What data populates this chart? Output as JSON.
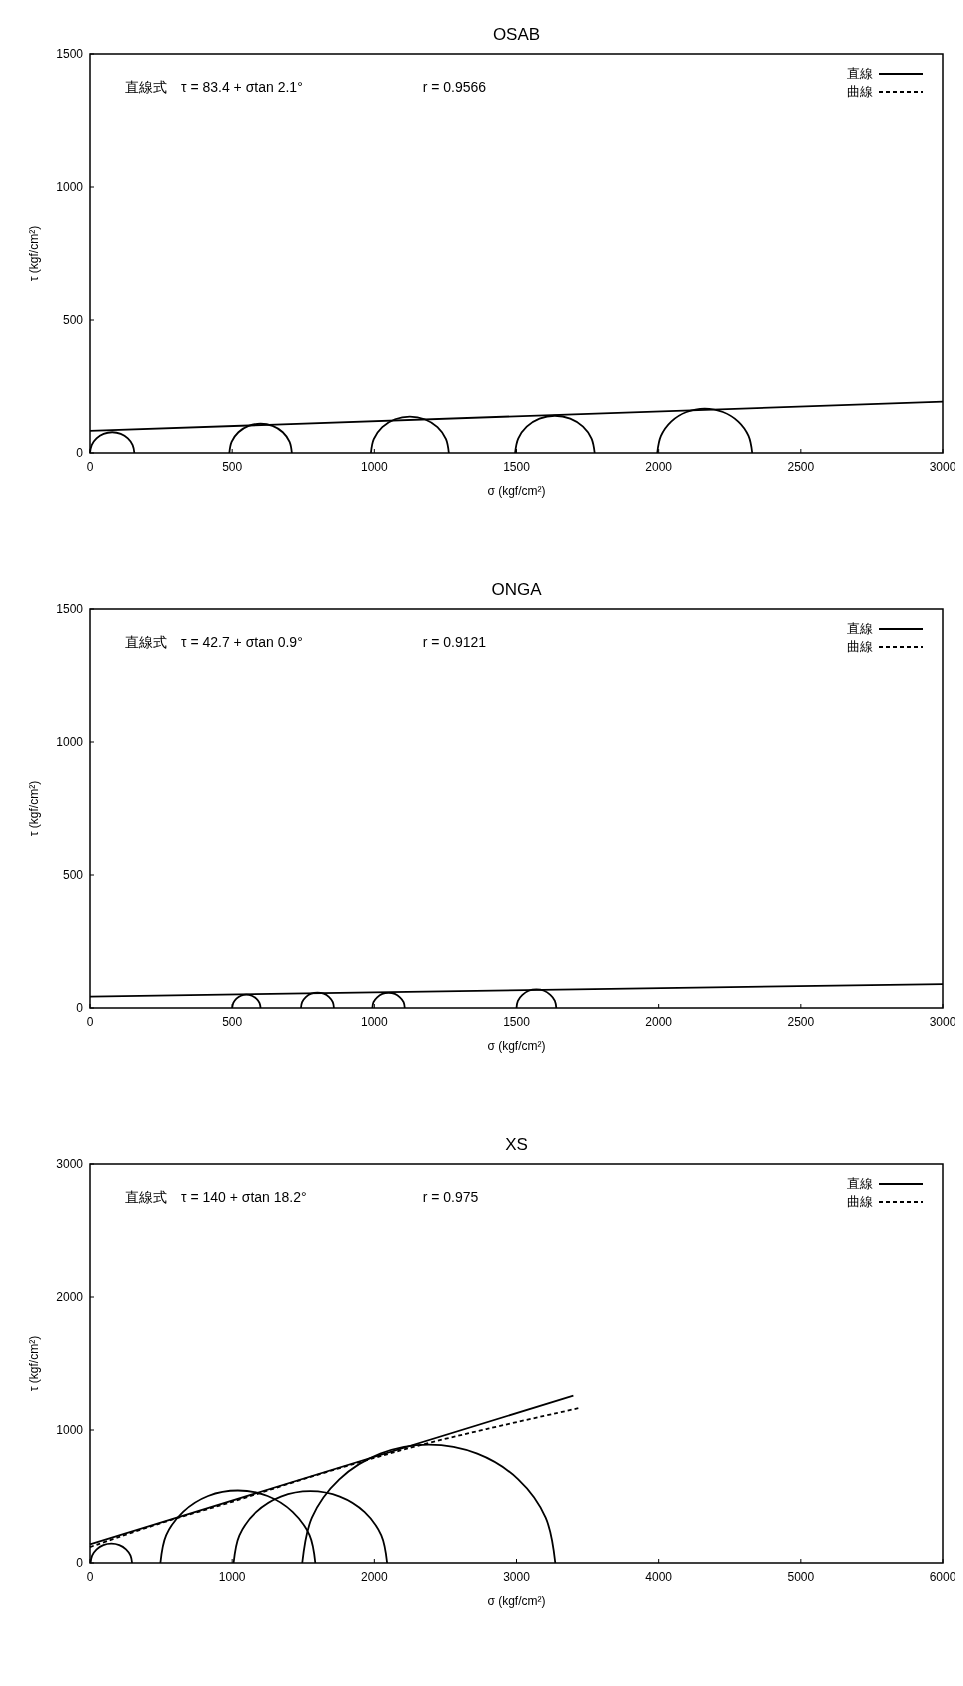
{
  "chart_data": [
    {
      "type": "line",
      "title": "OSAB",
      "xlabel": "σ (kgf/cm²)",
      "ylabel": "τ (kgf/cm²)",
      "xlim": [
        0,
        3000
      ],
      "xticks": [
        0,
        500,
        1000,
        1500,
        2000,
        2500,
        3000
      ],
      "ylim": [
        0,
        1500
      ],
      "yticks": [
        0,
        500,
        1000,
        1500
      ],
      "legend": "top right",
      "annotations": [
        "直線式　τ = 83.4 + σtan 2.1°",
        "r = 0.9566"
      ],
      "series": [
        {
          "name": "直線",
          "color": "#000000",
          "line_style": "solid",
          "x": [
            0,
            3000
          ],
          "values": [
            83,
            193
          ]
        },
        {
          "name": "曲線",
          "color": "#000000",
          "line_style": "dashed"
        },
        {
          "color": "#000000",
          "x": [
            0,
            6,
            23,
            48,
            78,
            108,
            133,
            150,
            156
          ],
          "values": [
            0,
            30,
            55,
            72,
            78,
            72,
            55,
            30,
            0
          ]
        },
        {
          "color": "#000000",
          "x": [
            490,
            498,
            522,
            558,
            600,
            642,
            678,
            702,
            710
          ],
          "values": [
            0,
            42,
            78,
            102,
            110,
            102,
            78,
            42,
            0
          ]
        },
        {
          "color": "#000000",
          "x": [
            988,
            998,
            1028,
            1073,
            1125,
            1177,
            1222,
            1252,
            1262
          ],
          "values": [
            0,
            52,
            97,
            127,
            137,
            127,
            97,
            52,
            0
          ]
        },
        {
          "color": "#000000",
          "x": [
            1495,
            1506,
            1536,
            1581,
            1635,
            1689,
            1734,
            1764,
            1775
          ],
          "values": [
            0,
            54,
            99,
            129,
            140,
            129,
            99,
            54,
            0
          ]
        },
        {
          "color": "#000000",
          "x": [
            1995,
            2008,
            2044,
            2098,
            2162,
            2226,
            2280,
            2316,
            2329
          ],
          "values": [
            0,
            64,
            118,
            154,
            167,
            154,
            118,
            64,
            0
          ]
        }
      ]
    },
    {
      "type": "line",
      "title": "ONGA",
      "xlabel": "σ (kgf/cm²)",
      "ylabel": "τ (kgf/cm²)",
      "xlim": [
        0,
        3000
      ],
      "xticks": [
        0,
        500,
        1000,
        1500,
        2000,
        2500,
        3000
      ],
      "ylim": [
        0,
        1500
      ],
      "yticks": [
        0,
        500,
        1000,
        1500
      ],
      "legend": "top right",
      "annotations": [
        "直線式　τ = 42.7 + σtan 0.9°",
        "r = 0.9121"
      ],
      "series": [
        {
          "name": "直線",
          "color": "#000000",
          "line_style": "solid",
          "x": [
            0,
            3000
          ],
          "values": [
            43,
            90
          ]
        },
        {
          "name": "曲線",
          "color": "#000000",
          "line_style": "dashed"
        },
        {
          "color": "#000000",
          "x": [
            500,
            504,
            515,
            531,
            550,
            569,
            585,
            596,
            600
          ],
          "values": [
            0,
            19,
            35,
            46,
            50,
            46,
            35,
            19,
            0
          ]
        },
        {
          "color": "#000000",
          "x": [
            742,
            746,
            759,
            778,
            800,
            822,
            841,
            854,
            858
          ],
          "values": [
            0,
            22,
            41,
            54,
            58,
            54,
            41,
            22,
            0
          ]
        },
        {
          "color": "#000000",
          "x": [
            993,
            997,
            1010,
            1028,
            1050,
            1072,
            1090,
            1103,
            1107
          ],
          "values": [
            0,
            22,
            40,
            53,
            57,
            53,
            40,
            22,
            0
          ]
        },
        {
          "color": "#000000",
          "x": [
            1500,
            1505,
            1521,
            1543,
            1570,
            1597,
            1619,
            1635,
            1640
          ],
          "values": [
            0,
            27,
            49,
            65,
            70,
            65,
            49,
            27,
            0
          ]
        }
      ]
    },
    {
      "type": "line",
      "title": "XS",
      "xlabel": "σ (kgf/cm²)",
      "ylabel": "τ (kgf/cm²)",
      "xlim": [
        0,
        6000
      ],
      "xticks": [
        0,
        1000,
        2000,
        3000,
        4000,
        5000,
        6000
      ],
      "ylim": [
        0,
        3000
      ],
      "yticks": [
        0,
        1000,
        2000,
        3000
      ],
      "legend": "top right",
      "annotations": [
        "直線式　τ = 140 + σtan 18.2°",
        "r = 0.975"
      ],
      "series": [
        {
          "name": "直線",
          "color": "#000000",
          "line_style": "solid",
          "x": [
            0,
            3400
          ],
          "values": [
            140,
            1258
          ]
        },
        {
          "name": "曲線",
          "color": "#000000",
          "line_style": "dashed",
          "x": [
            0,
            500,
            1000,
            1500,
            2000,
            2300,
            2800,
            3440
          ],
          "values": [
            120,
            300,
            460,
            630,
            790,
            880,
            1010,
            1165
          ]
        },
        {
          "color": "#000000",
          "x": [
            4,
            15,
            47,
            94,
            150,
            206,
            253,
            285,
            296
          ],
          "values": [
            0,
            56,
            103,
            135,
            146,
            135,
            103,
            56,
            0
          ]
        },
        {
          "color": "#000000",
          "x": [
            495,
            536,
            655,
            831,
            1040,
            1249,
            1425,
            1544,
            1585
          ],
          "values": [
            0,
            209,
            385,
            504,
            545,
            504,
            385,
            209,
            0
          ]
        },
        {
          "color": "#000000",
          "x": [
            1010,
            1051,
            1168,
            1343,
            1550,
            1757,
            1932,
            2049,
            2090
          ],
          "values": [
            0,
            207,
            382,
            499,
            540,
            499,
            382,
            207,
            0
          ]
        },
        {
          "color": "#000000",
          "x": [
            1493,
            1561,
            1754,
            2042,
            2383,
            2724,
            3012,
            3205,
            3273
          ],
          "values": [
            0,
            341,
            629,
            822,
            890,
            822,
            629,
            341,
            0
          ]
        }
      ]
    }
  ]
}
